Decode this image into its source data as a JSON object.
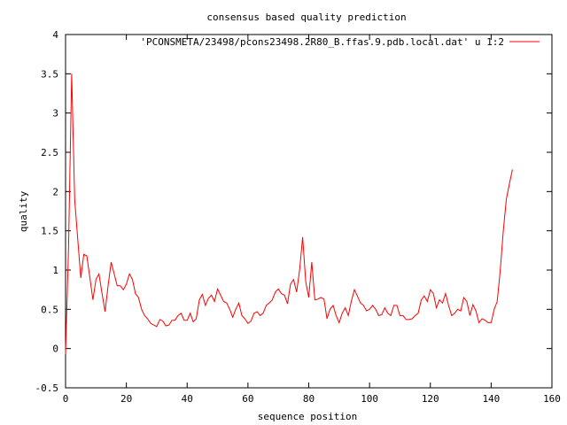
{
  "chart_data": {
    "type": "line",
    "title": "consensus based quality prediction",
    "xlabel": "sequence position",
    "ylabel": "quality",
    "xlim": [
      0,
      160
    ],
    "ylim": [
      -0.5,
      4
    ],
    "xticks": [
      0,
      20,
      40,
      60,
      80,
      100,
      120,
      140,
      160
    ],
    "yticks": [
      -0.5,
      0,
      0.5,
      1,
      1.5,
      2,
      2.5,
      3,
      3.5,
      4
    ],
    "xtick_labels": [
      "0",
      "20",
      "40",
      "60",
      "80",
      "100",
      "120",
      "140",
      "160"
    ],
    "ytick_labels": [
      "-0.5",
      "0",
      "0.5",
      "1",
      "1.5",
      "2",
      "2.5",
      "3",
      "3.5",
      "4"
    ],
    "legend_position": "top-right",
    "grid": false,
    "series": [
      {
        "name": "'PCONSMETA/23498/pcons23498.2R80_B.ffas.9.pdb.local.dat' u 1:2",
        "color": "#ff0000",
        "x_start": 0,
        "values": [
          -0.07,
          1.3,
          3.5,
          1.9,
          1.4,
          0.9,
          1.2,
          1.18,
          0.9,
          0.62,
          0.88,
          0.95,
          0.7,
          0.47,
          0.8,
          1.1,
          0.95,
          0.8,
          0.8,
          0.75,
          0.82,
          0.95,
          0.88,
          0.7,
          0.65,
          0.5,
          0.42,
          0.38,
          0.32,
          0.3,
          0.28,
          0.37,
          0.35,
          0.29,
          0.3,
          0.36,
          0.36,
          0.42,
          0.45,
          0.36,
          0.36,
          0.45,
          0.34,
          0.38,
          0.62,
          0.69,
          0.55,
          0.64,
          0.68,
          0.6,
          0.76,
          0.68,
          0.6,
          0.58,
          0.5,
          0.4,
          0.5,
          0.58,
          0.42,
          0.38,
          0.32,
          0.35,
          0.45,
          0.47,
          0.42,
          0.45,
          0.55,
          0.58,
          0.62,
          0.72,
          0.76,
          0.7,
          0.68,
          0.57,
          0.82,
          0.88,
          0.72,
          1.0,
          1.42,
          0.85,
          0.65,
          1.1,
          0.62,
          0.63,
          0.65,
          0.63,
          0.38,
          0.5,
          0.55,
          0.42,
          0.33,
          0.45,
          0.52,
          0.42,
          0.6,
          0.75,
          0.67,
          0.58,
          0.55,
          0.48,
          0.5,
          0.55,
          0.5,
          0.42,
          0.43,
          0.52,
          0.45,
          0.42,
          0.55,
          0.55,
          0.42,
          0.42,
          0.37,
          0.37,
          0.38,
          0.42,
          0.45,
          0.62,
          0.67,
          0.6,
          0.75,
          0.7,
          0.52,
          0.62,
          0.58,
          0.7,
          0.55,
          0.42,
          0.45,
          0.5,
          0.48,
          0.65,
          0.6,
          0.42,
          0.56,
          0.48,
          0.33,
          0.38,
          0.36,
          0.33,
          0.33,
          0.5,
          0.6,
          1.0,
          1.5,
          1.9,
          2.1,
          2.28
        ]
      }
    ]
  }
}
